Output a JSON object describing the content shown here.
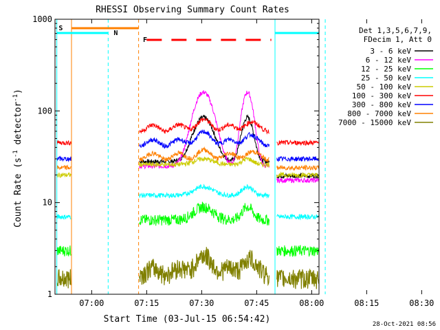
{
  "chart_data": {
    "type": "line",
    "title": "RHESSI Observing Summary Count Rates",
    "xlabel": "Start Time (03-Jul-15 06:54:42)",
    "ylabel": "Count Rate (s⁻¹ detector⁻¹)",
    "ylabel_parts": [
      "Count Rate (s",
      "-1",
      " detector",
      "-1",
      ")"
    ],
    "yscale": "log",
    "xlim_minutes": [
      -4,
      68
    ],
    "ylim": [
      1,
      1000
    ],
    "x_ticks": [
      {
        "m": 6,
        "label": "07:00"
      },
      {
        "m": 21,
        "label": "07:15"
      },
      {
        "m": 36,
        "label": "07:30"
      },
      {
        "m": 51,
        "label": "07:45"
      },
      {
        "m": 66,
        "label": "08:00"
      },
      {
        "m": 81,
        "label": "08:15"
      },
      {
        "m": 96,
        "label": "08:30"
      }
    ],
    "y_ticks": [
      {
        "v": 1,
        "label": "1"
      },
      {
        "v": 10,
        "label": "10"
      },
      {
        "v": 100,
        "label": "100"
      },
      {
        "v": 1000,
        "label": "1000"
      }
    ],
    "legend_header": [
      "Det 1,3,5,6,7,9,",
      "FDecim 1, Att 0"
    ],
    "legend_position": "right",
    "timestamp": "28-Oct-2021 08:56",
    "markers": [
      {
        "label": "S",
        "color": "#ff8000"
      },
      {
        "label": "N",
        "color": "#00ffff"
      },
      {
        "label": "F",
        "color": "#ff0000"
      }
    ],
    "series": [
      {
        "name": "3 - 6 keV",
        "color": "#000000",
        "pre": 0,
        "base": 28,
        "peak": 85
      },
      {
        "name": "6 - 12 keV",
        "color": "#ff00ff",
        "pre": 0,
        "base": 25,
        "peak": 160
      },
      {
        "name": "12 - 25 keV",
        "color": "#00ff00",
        "pre": 3,
        "base": 6.5,
        "peak": 9
      },
      {
        "name": "25 - 50 keV",
        "color": "#00ffff",
        "pre": 7,
        "base": 12,
        "peak": 15
      },
      {
        "name": "50 - 100 keV",
        "color": "#cccc00",
        "pre": 20,
        "base": 26,
        "peak": 30
      },
      {
        "name": "100 - 300 keV",
        "color": "#ff0000",
        "pre": 45,
        "base": 65,
        "peak": 75
      },
      {
        "name": "300 - 800 keV",
        "color": "#0000ff",
        "pre": 30,
        "base": 45,
        "peak": 55
      },
      {
        "name": "800 - 7000 keV",
        "color": "#ff8000",
        "pre": 24,
        "base": 32,
        "peak": 35
      },
      {
        "name": "7000 - 15000 keV",
        "color": "#808000",
        "pre": 1.5,
        "base": 1.8,
        "peak": 2.5
      }
    ]
  }
}
